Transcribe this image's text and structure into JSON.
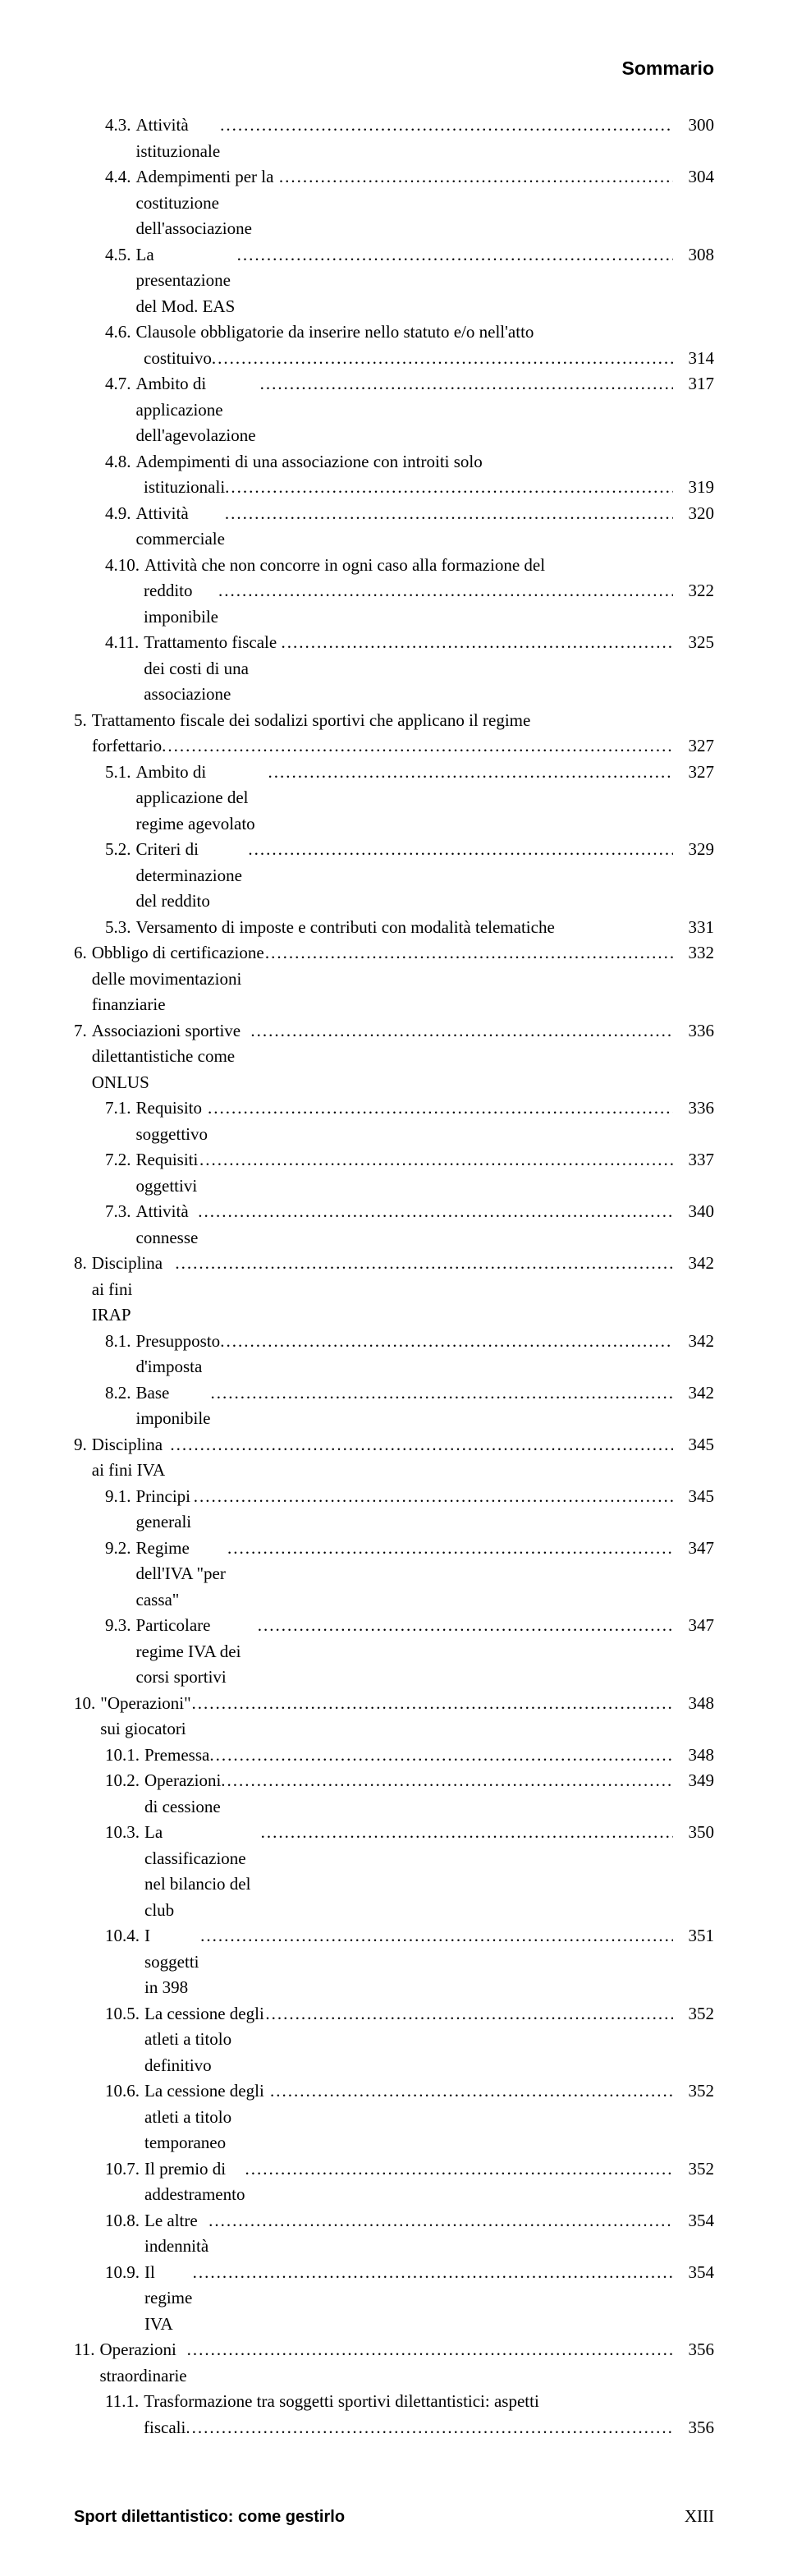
{
  "header": {
    "title": "Sommario"
  },
  "footer": {
    "left": "Sport dilettantistico: come gestirlo",
    "right": "XIII"
  },
  "toc": [
    {
      "num": "4.3.",
      "label": "Attività istituzionale",
      "page": "300",
      "indent": "ind-a"
    },
    {
      "num": "4.4.",
      "label": "Adempimenti per la costituzione dell'associazione",
      "page": "304",
      "indent": "ind-a"
    },
    {
      "num": "4.5.",
      "label": "La presentazione del Mod. EAS",
      "page": "308",
      "indent": "ind-a"
    },
    {
      "num": "4.6.",
      "label": "Clausole obbligatorie da inserire nello statuto e/o nell'atto",
      "indent": "ind-a",
      "nodots": true
    },
    {
      "label": "costituivo",
      "page": "314",
      "indent": "ind-b"
    },
    {
      "num": "4.7.",
      "label": "Ambito di applicazione dell'agevolazione",
      "page": "317",
      "indent": "ind-a"
    },
    {
      "num": "4.8.",
      "label": "Adempimenti di una associazione con introiti solo",
      "indent": "ind-a",
      "nodots": true
    },
    {
      "label": "istituzionali",
      "page": "319",
      "indent": "ind-b"
    },
    {
      "num": "4.9.",
      "label": "Attività commerciale",
      "page": "320",
      "indent": "ind-a"
    },
    {
      "num": "4.10.",
      "label": "Attività che non concorre in ogni caso alla formazione del",
      "indent": "ind-a",
      "nodots": true
    },
    {
      "label": "reddito imponibile",
      "page": "322",
      "indent": "ind-b"
    },
    {
      "num": "4.11.",
      "label": "Trattamento fiscale dei costi di una associazione",
      "page": "325",
      "indent": "ind-a"
    },
    {
      "num": "5.",
      "label": "Trattamento fiscale dei sodalizi sportivi che applicano il regime",
      "indent": "ind-c",
      "nodots": true
    },
    {
      "label": "forfettario",
      "page": "327",
      "indent": "ind-d"
    },
    {
      "num": "5.1.",
      "label": "Ambito di applicazione del regime agevolato",
      "page": "327",
      "indent": "ind-e"
    },
    {
      "num": "5.2.",
      "label": "Criteri di determinazione del reddito",
      "page": "329",
      "indent": "ind-e"
    },
    {
      "num": "5.3.",
      "label": "Versamento di imposte e contributi con modalità telematiche",
      "page": "331",
      "indent": "ind-e",
      "nodots": true,
      "gap": true
    },
    {
      "num": "6.",
      "label": "Obbligo di certificazione delle movimentazioni finanziarie",
      "page": "332",
      "indent": "ind-c"
    },
    {
      "num": "7.",
      "label": "Associazioni sportive dilettantistiche come ONLUS",
      "page": "336",
      "indent": "ind-c"
    },
    {
      "num": "7.1.",
      "label": "Requisito soggettivo",
      "page": "336",
      "indent": "ind-e"
    },
    {
      "num": "7.2.",
      "label": "Requisiti oggettivi",
      "page": "337",
      "indent": "ind-e"
    },
    {
      "num": "7.3.",
      "label": "Attività connesse",
      "page": "340",
      "indent": "ind-e"
    },
    {
      "num": "8.",
      "label": "Disciplina ai fini IRAP",
      "page": "342",
      "indent": "ind-c"
    },
    {
      "num": "8.1.",
      "label": "Presupposto d'imposta",
      "page": "342",
      "indent": "ind-e"
    },
    {
      "num": "8.2.",
      "label": "Base imponibile",
      "page": "342",
      "indent": "ind-e"
    },
    {
      "num": "9.",
      "label": "Disciplina ai fini IVA",
      "page": "345",
      "indent": "ind-c"
    },
    {
      "num": "9.1.",
      "label": "Principi generali",
      "page": "345",
      "indent": "ind-e"
    },
    {
      "num": "9.2.",
      "label": "Regime dell'IVA \"per cassa\"",
      "page": "347",
      "indent": "ind-e"
    },
    {
      "num": "9.3.",
      "label": "Particolare regime IVA dei corsi sportivi",
      "page": "347",
      "indent": "ind-e"
    },
    {
      "num": "10.",
      "label": "\"Operazioni\" sui giocatori",
      "page": "348",
      "indent": "ind-f"
    },
    {
      "num": "10.1.",
      "label": "Premessa",
      "page": "348",
      "indent": "ind-g"
    },
    {
      "num": "10.2.",
      "label": "Operazioni di cessione",
      "page": "349",
      "indent": "ind-g"
    },
    {
      "num": "10.3.",
      "label": "La classificazione nel bilancio del club",
      "page": "350",
      "indent": "ind-g"
    },
    {
      "num": "10.4.",
      "label": "I soggetti in 398",
      "page": "351",
      "indent": "ind-g"
    },
    {
      "num": "10.5.",
      "label": "La cessione degli atleti a titolo definitivo",
      "page": "352",
      "indent": "ind-g"
    },
    {
      "num": "10.6.",
      "label": "La cessione degli atleti a titolo temporaneo",
      "page": "352",
      "indent": "ind-g"
    },
    {
      "num": "10.7.",
      "label": "Il premio di addestramento",
      "page": "352",
      "indent": "ind-g"
    },
    {
      "num": "10.8.",
      "label": "Le altre indennità",
      "page": "354",
      "indent": "ind-g"
    },
    {
      "num": "10.9.",
      "label": "Il regime IVA",
      "page": "354",
      "indent": "ind-g"
    },
    {
      "num": "11.",
      "label": "Operazioni straordinarie",
      "page": "356",
      "indent": "ind-f"
    },
    {
      "num": "11.1.",
      "label": "Trasformazione tra soggetti sportivi dilettantistici: aspetti",
      "indent": "ind-g",
      "nodots": true
    },
    {
      "label": "fiscali",
      "page": "356",
      "indent": "ind-h"
    }
  ]
}
